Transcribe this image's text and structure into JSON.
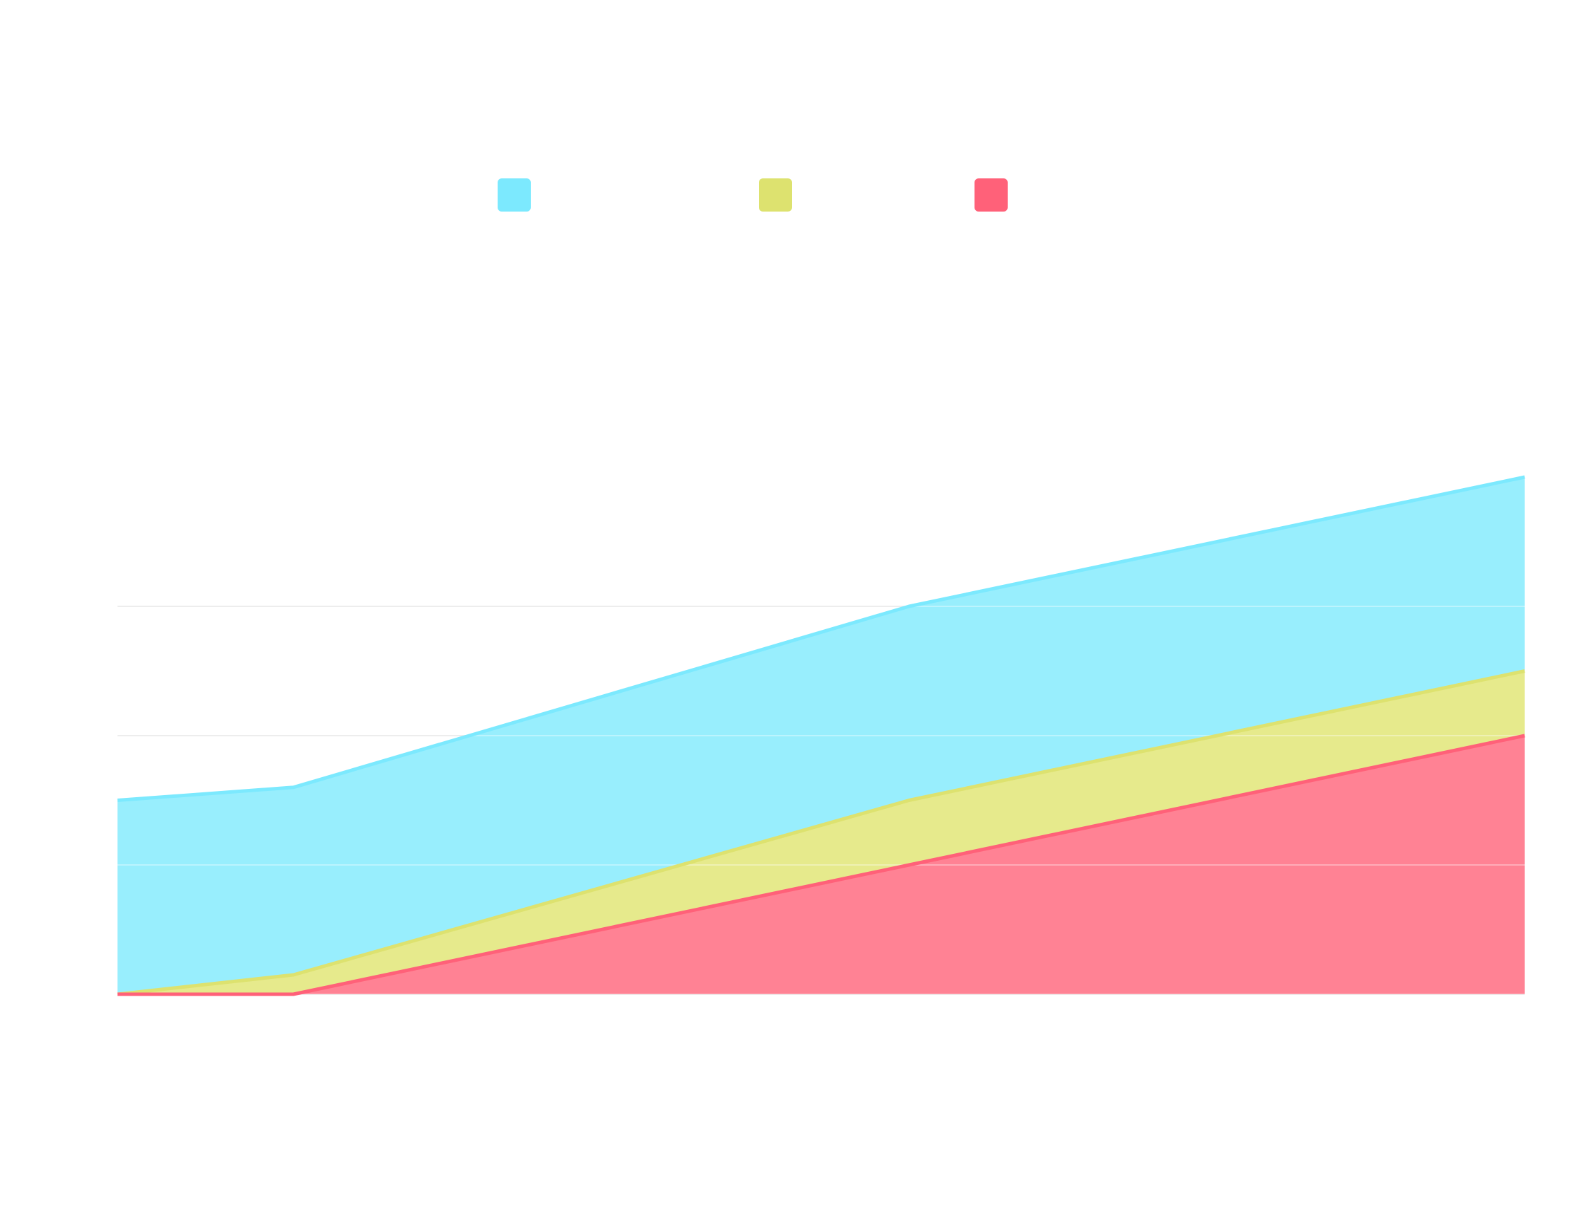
{
  "chart_data": {
    "type": "area",
    "stacked": true,
    "x": [
      0,
      1,
      4.5,
      8
    ],
    "series": [
      {
        "color": "#ff6179",
        "fill_color": "#ff8294",
        "values": [
          0,
          0,
          1,
          2
        ]
      },
      {
        "color": "#dde26f",
        "fill_color": "#e6ea8c",
        "values": [
          0,
          0.15,
          0.5,
          0.5
        ]
      },
      {
        "color": "#7ce9fe",
        "fill_color": "#98eefd",
        "values": [
          1.5,
          1.45,
          1.5,
          1.5
        ]
      }
    ],
    "ylim": [
      0,
      4
    ],
    "gridlines": [
      0,
      1,
      2,
      3
    ],
    "grid": true,
    "legend": {
      "placement": "top"
    },
    "title": "",
    "xlabel": "",
    "ylabel": ""
  }
}
